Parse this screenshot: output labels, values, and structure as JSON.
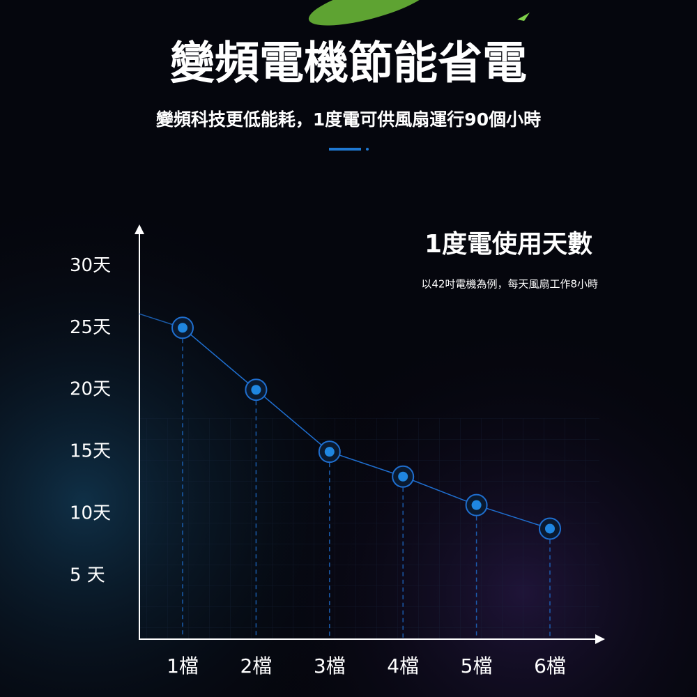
{
  "chart_data": {
    "type": "line",
    "title": "變頻電機節能省電",
    "subtitle": "變頻科技更低能耗，1度電可供風扇運行90個小時",
    "chart_title": "1度電使用天數",
    "chart_subtitle": "以42吋電機為例，每天風扇工作8小時",
    "categories": [
      "1檔",
      "2檔",
      "3檔",
      "4檔",
      "5檔",
      "6檔"
    ],
    "values": [
      25,
      20,
      15,
      13,
      10.7,
      8.8
    ],
    "color": "#1f6fd0",
    "ylim": [
      0,
      33
    ],
    "yticks": [
      {
        "value": 5,
        "label": "5 天"
      },
      {
        "value": 10,
        "label": "10天"
      },
      {
        "value": 15,
        "label": "15天"
      },
      {
        "value": 20,
        "label": "20天"
      },
      {
        "value": 25,
        "label": "25天"
      },
      {
        "value": 30,
        "label": "30天"
      }
    ]
  }
}
